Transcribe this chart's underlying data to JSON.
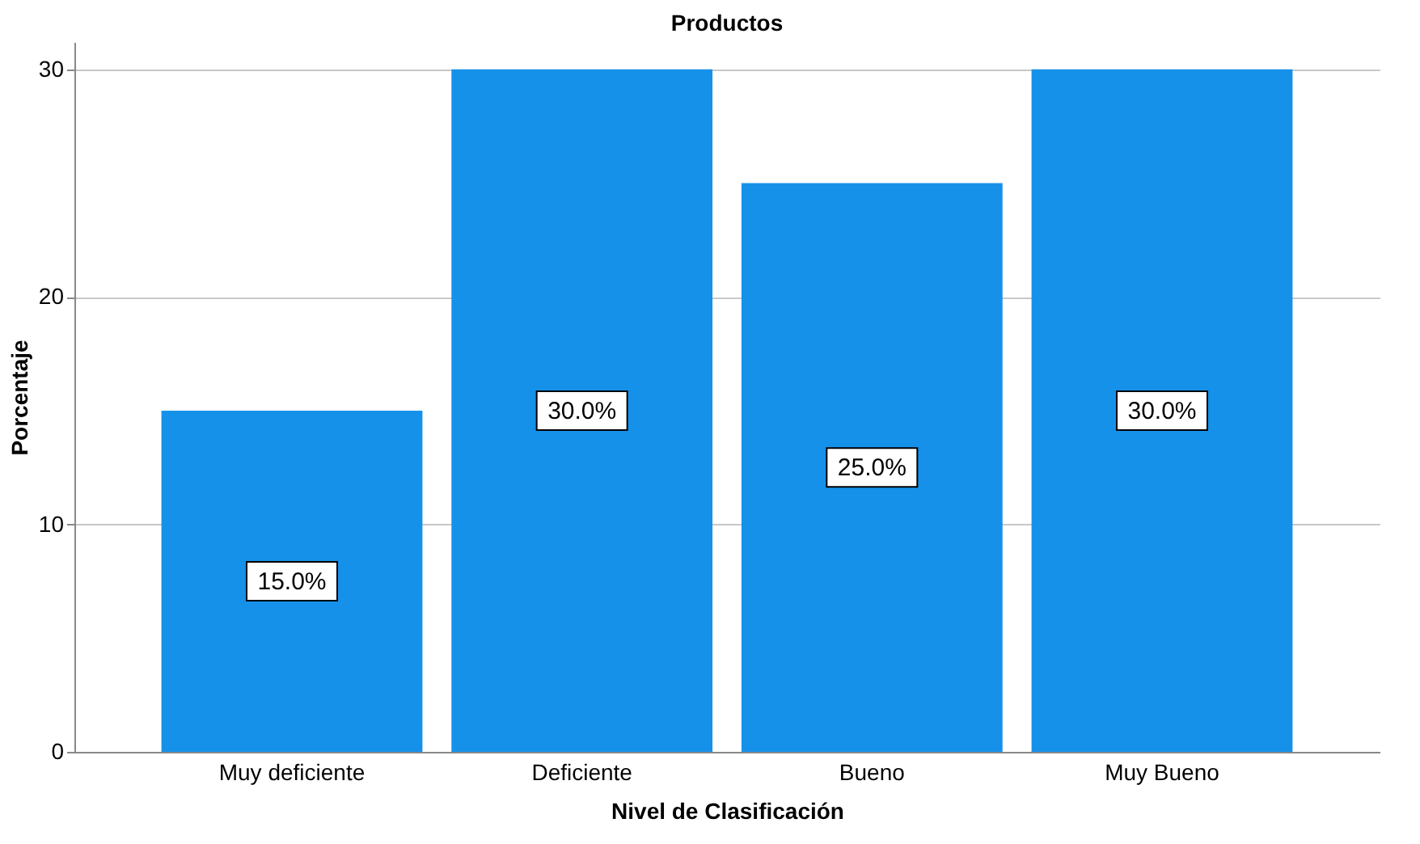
{
  "chart_data": {
    "type": "bar",
    "title": "Productos",
    "xlabel": "Nivel de Clasificación",
    "ylabel": "Porcentaje",
    "categories": [
      "Muy deficiente",
      "Deficiente",
      "Bueno",
      "Muy Bueno"
    ],
    "values": [
      15.0,
      30.0,
      25.0,
      30.0
    ],
    "value_labels": [
      "15.0%",
      "30.0%",
      "25.0%",
      "30.0%"
    ],
    "color": "#1591ea",
    "ylim": [
      0,
      31.2
    ],
    "yticks": [
      0,
      10,
      20,
      30
    ],
    "grid": "y"
  }
}
